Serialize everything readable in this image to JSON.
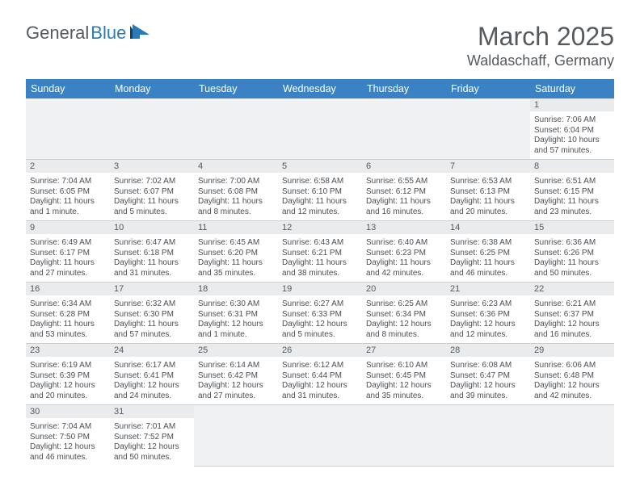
{
  "colors": {
    "header_bg": "#3a82c4",
    "header_text": "#ffffff",
    "body_bg": "#ffffff",
    "cell_text": "#4a4f54",
    "daynum_bg": "#e9ebed",
    "empty_bg": "#eff1f2",
    "grid_line": "#c9cfd4",
    "title_color": "#555a5f",
    "logo_gray": "#555a5f",
    "logo_blue": "#2a7ab9"
  },
  "logo": {
    "part1": "General",
    "part2": "Blue"
  },
  "title": "March 2025",
  "location": "Waldaschaff, Germany",
  "weekdays": [
    "Sunday",
    "Monday",
    "Tuesday",
    "Wednesday",
    "Thursday",
    "Friday",
    "Saturday"
  ],
  "weeks": [
    [
      null,
      null,
      null,
      null,
      null,
      null,
      {
        "n": "1",
        "sr": "Sunrise: 7:06 AM",
        "ss": "Sunset: 6:04 PM",
        "dl": "Daylight: 10 hours and 57 minutes."
      }
    ],
    [
      {
        "n": "2",
        "sr": "Sunrise: 7:04 AM",
        "ss": "Sunset: 6:05 PM",
        "dl": "Daylight: 11 hours and 1 minute."
      },
      {
        "n": "3",
        "sr": "Sunrise: 7:02 AM",
        "ss": "Sunset: 6:07 PM",
        "dl": "Daylight: 11 hours and 5 minutes."
      },
      {
        "n": "4",
        "sr": "Sunrise: 7:00 AM",
        "ss": "Sunset: 6:08 PM",
        "dl": "Daylight: 11 hours and 8 minutes."
      },
      {
        "n": "5",
        "sr": "Sunrise: 6:58 AM",
        "ss": "Sunset: 6:10 PM",
        "dl": "Daylight: 11 hours and 12 minutes."
      },
      {
        "n": "6",
        "sr": "Sunrise: 6:55 AM",
        "ss": "Sunset: 6:12 PM",
        "dl": "Daylight: 11 hours and 16 minutes."
      },
      {
        "n": "7",
        "sr": "Sunrise: 6:53 AM",
        "ss": "Sunset: 6:13 PM",
        "dl": "Daylight: 11 hours and 20 minutes."
      },
      {
        "n": "8",
        "sr": "Sunrise: 6:51 AM",
        "ss": "Sunset: 6:15 PM",
        "dl": "Daylight: 11 hours and 23 minutes."
      }
    ],
    [
      {
        "n": "9",
        "sr": "Sunrise: 6:49 AM",
        "ss": "Sunset: 6:17 PM",
        "dl": "Daylight: 11 hours and 27 minutes."
      },
      {
        "n": "10",
        "sr": "Sunrise: 6:47 AM",
        "ss": "Sunset: 6:18 PM",
        "dl": "Daylight: 11 hours and 31 minutes."
      },
      {
        "n": "11",
        "sr": "Sunrise: 6:45 AM",
        "ss": "Sunset: 6:20 PM",
        "dl": "Daylight: 11 hours and 35 minutes."
      },
      {
        "n": "12",
        "sr": "Sunrise: 6:43 AM",
        "ss": "Sunset: 6:21 PM",
        "dl": "Daylight: 11 hours and 38 minutes."
      },
      {
        "n": "13",
        "sr": "Sunrise: 6:40 AM",
        "ss": "Sunset: 6:23 PM",
        "dl": "Daylight: 11 hours and 42 minutes."
      },
      {
        "n": "14",
        "sr": "Sunrise: 6:38 AM",
        "ss": "Sunset: 6:25 PM",
        "dl": "Daylight: 11 hours and 46 minutes."
      },
      {
        "n": "15",
        "sr": "Sunrise: 6:36 AM",
        "ss": "Sunset: 6:26 PM",
        "dl": "Daylight: 11 hours and 50 minutes."
      }
    ],
    [
      {
        "n": "16",
        "sr": "Sunrise: 6:34 AM",
        "ss": "Sunset: 6:28 PM",
        "dl": "Daylight: 11 hours and 53 minutes."
      },
      {
        "n": "17",
        "sr": "Sunrise: 6:32 AM",
        "ss": "Sunset: 6:30 PM",
        "dl": "Daylight: 11 hours and 57 minutes."
      },
      {
        "n": "18",
        "sr": "Sunrise: 6:30 AM",
        "ss": "Sunset: 6:31 PM",
        "dl": "Daylight: 12 hours and 1 minute."
      },
      {
        "n": "19",
        "sr": "Sunrise: 6:27 AM",
        "ss": "Sunset: 6:33 PM",
        "dl": "Daylight: 12 hours and 5 minutes."
      },
      {
        "n": "20",
        "sr": "Sunrise: 6:25 AM",
        "ss": "Sunset: 6:34 PM",
        "dl": "Daylight: 12 hours and 8 minutes."
      },
      {
        "n": "21",
        "sr": "Sunrise: 6:23 AM",
        "ss": "Sunset: 6:36 PM",
        "dl": "Daylight: 12 hours and 12 minutes."
      },
      {
        "n": "22",
        "sr": "Sunrise: 6:21 AM",
        "ss": "Sunset: 6:37 PM",
        "dl": "Daylight: 12 hours and 16 minutes."
      }
    ],
    [
      {
        "n": "23",
        "sr": "Sunrise: 6:19 AM",
        "ss": "Sunset: 6:39 PM",
        "dl": "Daylight: 12 hours and 20 minutes."
      },
      {
        "n": "24",
        "sr": "Sunrise: 6:17 AM",
        "ss": "Sunset: 6:41 PM",
        "dl": "Daylight: 12 hours and 24 minutes."
      },
      {
        "n": "25",
        "sr": "Sunrise: 6:14 AM",
        "ss": "Sunset: 6:42 PM",
        "dl": "Daylight: 12 hours and 27 minutes."
      },
      {
        "n": "26",
        "sr": "Sunrise: 6:12 AM",
        "ss": "Sunset: 6:44 PM",
        "dl": "Daylight: 12 hours and 31 minutes."
      },
      {
        "n": "27",
        "sr": "Sunrise: 6:10 AM",
        "ss": "Sunset: 6:45 PM",
        "dl": "Daylight: 12 hours and 35 minutes."
      },
      {
        "n": "28",
        "sr": "Sunrise: 6:08 AM",
        "ss": "Sunset: 6:47 PM",
        "dl": "Daylight: 12 hours and 39 minutes."
      },
      {
        "n": "29",
        "sr": "Sunrise: 6:06 AM",
        "ss": "Sunset: 6:48 PM",
        "dl": "Daylight: 12 hours and 42 minutes."
      }
    ],
    [
      {
        "n": "30",
        "sr": "Sunrise: 7:04 AM",
        "ss": "Sunset: 7:50 PM",
        "dl": "Daylight: 12 hours and 46 minutes."
      },
      {
        "n": "31",
        "sr": "Sunrise: 7:01 AM",
        "ss": "Sunset: 7:52 PM",
        "dl": "Daylight: 12 hours and 50 minutes."
      },
      null,
      null,
      null,
      null,
      null
    ]
  ]
}
